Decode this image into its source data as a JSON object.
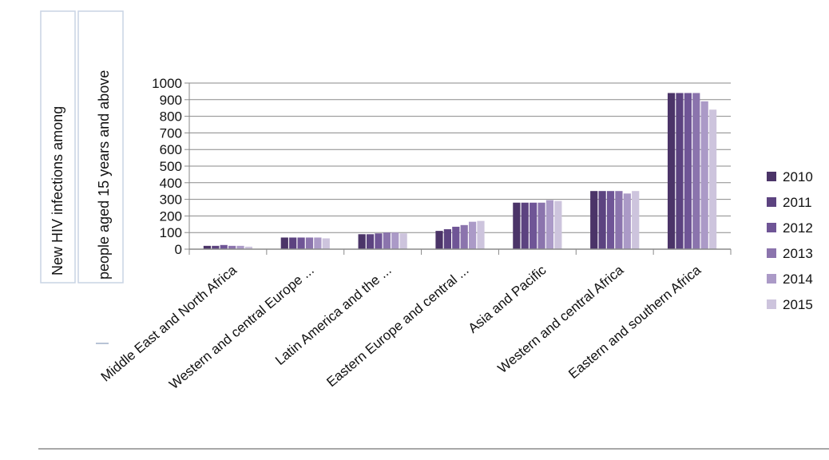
{
  "chart_data": {
    "type": "bar",
    "ylabel": [
      "New HIV infections among",
      "people aged 15 years and above"
    ],
    "xlabel": "",
    "ylim": [
      0,
      1000
    ],
    "yticks": [
      0,
      100,
      200,
      300,
      400,
      500,
      600,
      700,
      800,
      900,
      1000
    ],
    "grid": "horizontal",
    "legend_position": "right",
    "categories": [
      "Middle East  and North Africa",
      "Western and central Europe ...",
      "Latin America and the ...",
      "Eastern Europe and central ...",
      "Asia and Pacific",
      "Western and central Africa",
      "Eastern and southern Africa"
    ],
    "series": [
      {
        "name": "2010",
        "color": "#4b3468",
        "values": [
          20,
          70,
          90,
          110,
          280,
          350,
          940
        ]
      },
      {
        "name": "2011",
        "color": "#5c4380",
        "values": [
          20,
          70,
          90,
          120,
          280,
          350,
          940
        ]
      },
      {
        "name": "2012",
        "color": "#6f5596",
        "values": [
          25,
          70,
          95,
          135,
          280,
          350,
          940
        ]
      },
      {
        "name": "2013",
        "color": "#8b74ad",
        "values": [
          20,
          70,
          100,
          145,
          280,
          350,
          940
        ]
      },
      {
        "name": "2014",
        "color": "#ab9ac7",
        "values": [
          20,
          70,
          100,
          165,
          295,
          335,
          890
        ]
      },
      {
        "name": "2015",
        "color": "#cdc4dd",
        "values": [
          15,
          65,
          95,
          170,
          290,
          350,
          840
        ]
      }
    ]
  }
}
